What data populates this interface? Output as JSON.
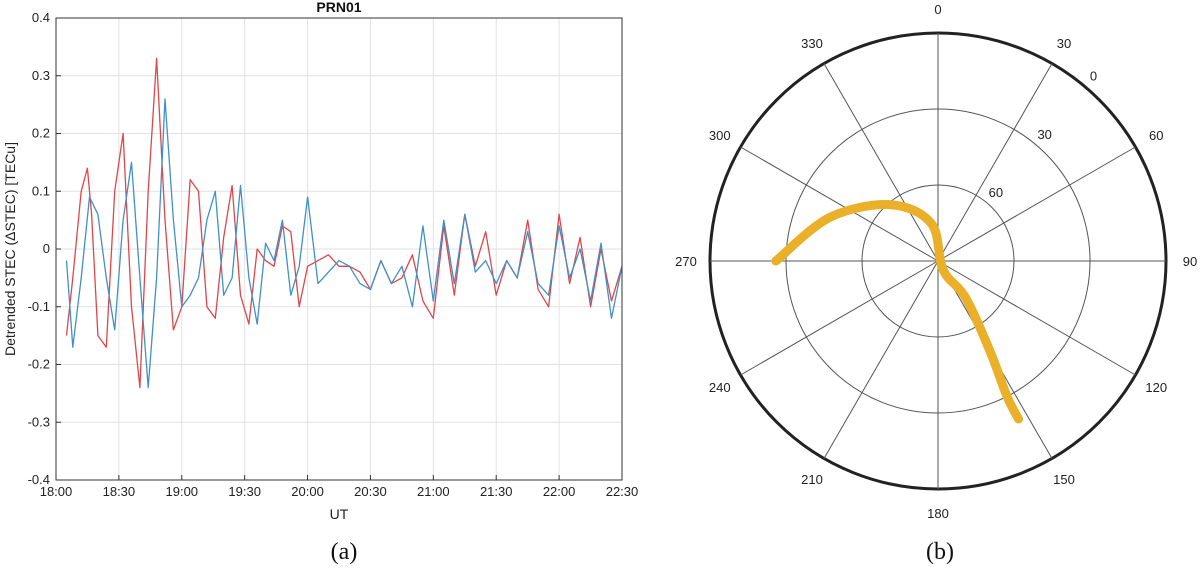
{
  "chart_data": [
    {
      "type": "line",
      "panel_label": "(a)",
      "title": "PRN01",
      "xlabel": "UT",
      "ylabel": "Detrended STEC (ΔSTEC) [TECu]",
      "xlim": [
        "18:00",
        "22:30"
      ],
      "ylim": [
        -0.4,
        0.4
      ],
      "x_ticks": [
        "18:00",
        "18:30",
        "19:00",
        "19:30",
        "20:00",
        "20:30",
        "21:00",
        "21:30",
        "22:00",
        "22:30"
      ],
      "y_ticks": [
        -0.4,
        -0.3,
        -0.2,
        -0.1,
        0,
        0.1,
        0.2,
        0.3,
        0.4
      ],
      "grid": true,
      "legend": "none",
      "series": [
        {
          "color": "#e0454a",
          "x": [
            "18:05",
            "18:08",
            "18:12",
            "18:15",
            "18:17",
            "18:20",
            "18:24",
            "18:28",
            "18:32",
            "18:36",
            "18:40",
            "18:44",
            "18:48",
            "18:52",
            "18:56",
            "19:00",
            "19:04",
            "19:08",
            "19:12",
            "19:16",
            "19:20",
            "19:24",
            "19:28",
            "19:32",
            "19:36",
            "19:40",
            "19:44",
            "19:48",
            "19:52",
            "19:56",
            "20:00",
            "20:05",
            "20:10",
            "20:15",
            "20:20",
            "20:25",
            "20:30",
            "20:35",
            "20:40",
            "20:45",
            "20:50",
            "20:55",
            "21:00",
            "21:05",
            "21:10",
            "21:15",
            "21:20",
            "21:25",
            "21:30",
            "21:35",
            "21:40",
            "21:45",
            "21:50",
            "21:55",
            "22:00",
            "22:05",
            "22:10",
            "22:15",
            "22:20",
            "22:25",
            "22:30"
          ],
          "values": [
            -0.15,
            -0.05,
            0.1,
            0.14,
            0.06,
            -0.15,
            -0.17,
            0.1,
            0.2,
            -0.1,
            -0.24,
            0.1,
            0.33,
            0.05,
            -0.14,
            -0.1,
            0.12,
            0.1,
            -0.1,
            -0.12,
            0.02,
            0.11,
            -0.08,
            -0.13,
            0.0,
            -0.02,
            -0.03,
            0.04,
            0.03,
            -0.1,
            -0.03,
            -0.02,
            -0.01,
            -0.03,
            -0.03,
            -0.04,
            -0.07,
            -0.02,
            -0.06,
            -0.05,
            -0.01,
            -0.09,
            -0.12,
            0.04,
            -0.08,
            0.06,
            -0.03,
            0.03,
            -0.08,
            -0.02,
            -0.05,
            0.05,
            -0.07,
            -0.1,
            0.06,
            -0.06,
            0.02,
            -0.1,
            0.0,
            -0.09,
            -0.03
          ]
        },
        {
          "color": "#3f91c7",
          "x": [
            "18:05",
            "18:08",
            "18:12",
            "18:16",
            "18:20",
            "18:24",
            "18:28",
            "18:32",
            "18:36",
            "18:40",
            "18:44",
            "18:48",
            "18:52",
            "18:56",
            "19:00",
            "19:04",
            "19:08",
            "19:12",
            "19:16",
            "19:20",
            "19:24",
            "19:28",
            "19:32",
            "19:36",
            "19:40",
            "19:44",
            "19:48",
            "19:52",
            "19:56",
            "20:00",
            "20:05",
            "20:10",
            "20:15",
            "20:20",
            "20:25",
            "20:30",
            "20:35",
            "20:40",
            "20:45",
            "20:50",
            "20:55",
            "21:00",
            "21:05",
            "21:10",
            "21:15",
            "21:20",
            "21:25",
            "21:30",
            "21:35",
            "21:40",
            "21:45",
            "21:50",
            "21:55",
            "22:00",
            "22:05",
            "22:10",
            "22:15",
            "22:20",
            "22:25",
            "22:30"
          ],
          "values": [
            -0.02,
            -0.17,
            -0.05,
            0.09,
            0.06,
            -0.05,
            -0.14,
            0.05,
            0.15,
            -0.05,
            -0.24,
            -0.05,
            0.26,
            0.05,
            -0.1,
            -0.08,
            -0.05,
            0.05,
            0.1,
            -0.08,
            -0.05,
            0.11,
            -0.05,
            -0.13,
            0.01,
            -0.02,
            0.05,
            -0.08,
            -0.03,
            0.09,
            -0.06,
            -0.04,
            -0.02,
            -0.03,
            -0.06,
            -0.07,
            -0.02,
            -0.06,
            -0.03,
            -0.1,
            0.04,
            -0.09,
            0.05,
            -0.06,
            0.06,
            -0.04,
            -0.02,
            -0.06,
            -0.02,
            -0.05,
            0.03,
            -0.06,
            -0.08,
            0.04,
            -0.05,
            0.0,
            -0.09,
            0.01,
            -0.12,
            -0.03
          ]
        }
      ]
    },
    {
      "type": "polar",
      "panel_label": "(b)",
      "azimuth_labels": [
        "0",
        "30",
        "60",
        "90",
        "120",
        "150",
        "180",
        "210",
        "240",
        "270",
        "300",
        "330"
      ],
      "azimuth_degrees": [
        0,
        30,
        60,
        90,
        120,
        150,
        180,
        210,
        240,
        270,
        300,
        330
      ],
      "elevation_labels": [
        "0",
        "30",
        "60"
      ],
      "elevation_degrees": [
        0,
        30,
        60
      ],
      "elevation_range": [
        0,
        90
      ],
      "direction": "clockwise",
      "zero_location": "top",
      "track": {
        "color": "#eab02a",
        "points": [
          {
            "azimuth": 270,
            "elevation": 26
          },
          {
            "azimuth": 292,
            "elevation": 44
          },
          {
            "azimuth": 320,
            "elevation": 61
          },
          {
            "azimuth": 350,
            "elevation": 75
          },
          {
            "azimuth": 150,
            "elevation": 86
          },
          {
            "azimuth": 143,
            "elevation": 72
          },
          {
            "azimuth": 150,
            "elevation": 49
          },
          {
            "azimuth": 153,
            "elevation": 30
          },
          {
            "azimuth": 153,
            "elevation": 20
          }
        ]
      }
    }
  ]
}
